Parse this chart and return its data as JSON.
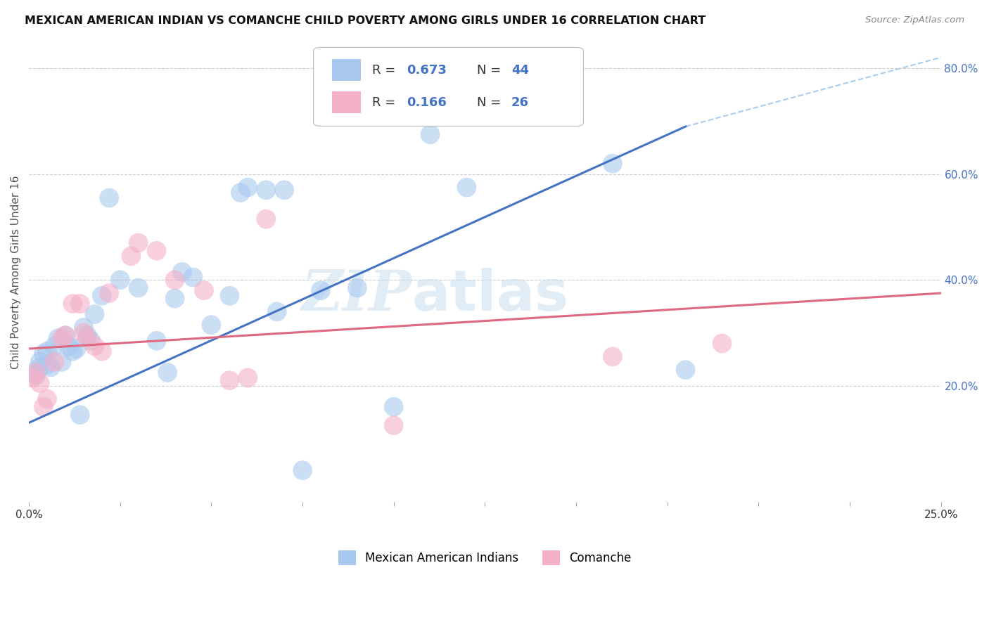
{
  "title": "MEXICAN AMERICAN INDIAN VS COMANCHE CHILD POVERTY AMONG GIRLS UNDER 16 CORRELATION CHART",
  "source": "Source: ZipAtlas.com",
  "ylabel": "Child Poverty Among Girls Under 16",
  "xlim": [
    0.0,
    0.25
  ],
  "ylim": [
    -0.02,
    0.85
  ],
  "ytick_labels_right": [
    "20.0%",
    "40.0%",
    "60.0%",
    "80.0%"
  ],
  "ytick_vals_right": [
    0.2,
    0.4,
    0.6,
    0.8
  ],
  "watermark_zip": "ZIP",
  "watermark_atlas": "atlas",
  "color_blue": "#A8C8EE",
  "color_pink": "#F4B0C8",
  "color_blue_text": "#4472C4",
  "color_pink_text": "#E06880",
  "blue_scatter_x": [
    0.001,
    0.002,
    0.003,
    0.003,
    0.004,
    0.005,
    0.005,
    0.006,
    0.007,
    0.008,
    0.009,
    0.01,
    0.011,
    0.012,
    0.013,
    0.014,
    0.015,
    0.016,
    0.017,
    0.018,
    0.02,
    0.022,
    0.025,
    0.03,
    0.035,
    0.038,
    0.04,
    0.042,
    0.045,
    0.05,
    0.055,
    0.058,
    0.06,
    0.065,
    0.068,
    0.07,
    0.075,
    0.08,
    0.09,
    0.1,
    0.11,
    0.12,
    0.16,
    0.18
  ],
  "blue_scatter_y": [
    0.225,
    0.22,
    0.235,
    0.245,
    0.26,
    0.24,
    0.265,
    0.235,
    0.275,
    0.29,
    0.245,
    0.295,
    0.275,
    0.265,
    0.27,
    0.145,
    0.31,
    0.295,
    0.285,
    0.335,
    0.37,
    0.555,
    0.4,
    0.385,
    0.285,
    0.225,
    0.365,
    0.415,
    0.405,
    0.315,
    0.37,
    0.565,
    0.575,
    0.57,
    0.34,
    0.57,
    0.04,
    0.38,
    0.385,
    0.16,
    0.675,
    0.575,
    0.62,
    0.23
  ],
  "pink_scatter_x": [
    0.001,
    0.002,
    0.003,
    0.004,
    0.005,
    0.007,
    0.009,
    0.01,
    0.012,
    0.014,
    0.015,
    0.016,
    0.018,
    0.02,
    0.022,
    0.028,
    0.03,
    0.035,
    0.04,
    0.048,
    0.055,
    0.06,
    0.065,
    0.1,
    0.16,
    0.19
  ],
  "pink_scatter_y": [
    0.215,
    0.225,
    0.205,
    0.16,
    0.175,
    0.245,
    0.29,
    0.295,
    0.355,
    0.355,
    0.3,
    0.29,
    0.275,
    0.265,
    0.375,
    0.445,
    0.47,
    0.455,
    0.4,
    0.38,
    0.21,
    0.215,
    0.515,
    0.125,
    0.255,
    0.28
  ],
  "blue_line_x": [
    0.0,
    0.18
  ],
  "blue_line_y": [
    0.13,
    0.69
  ],
  "dashed_line_x": [
    0.18,
    0.255
  ],
  "dashed_line_y": [
    0.69,
    0.83
  ],
  "pink_line_x": [
    0.0,
    0.25
  ],
  "pink_line_y": [
    0.27,
    0.375
  ],
  "legend_label_blue": "Mexican American Indians",
  "legend_label_pink": "Comanche",
  "grid_color": "#CCCCCC",
  "bg_color": "#FFFFFF",
  "legend_r1": "0.673",
  "legend_n1": "44",
  "legend_r2": "0.166",
  "legend_n2": "26"
}
